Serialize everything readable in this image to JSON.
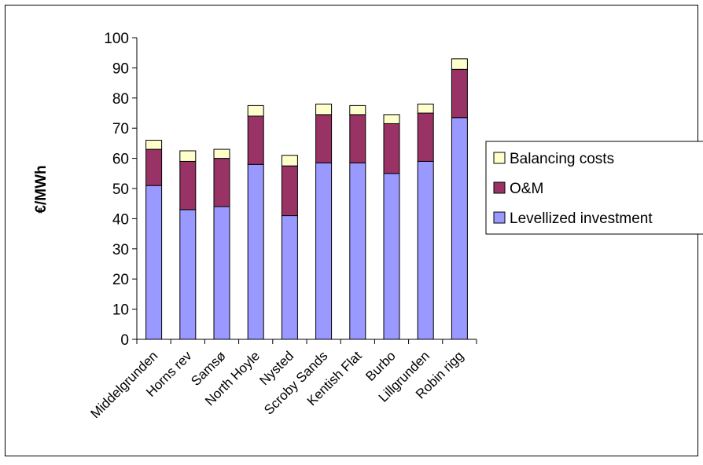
{
  "chart_data": {
    "type": "bar",
    "stacked": true,
    "title": "",
    "xlabel": "",
    "ylabel": "€/MWh",
    "ylim": [
      0,
      100
    ],
    "yticks": [
      0,
      10,
      20,
      30,
      40,
      50,
      60,
      70,
      80,
      90,
      100
    ],
    "grid": false,
    "legend_position": "right",
    "categories": [
      "Middelgrunden",
      "Horns rev",
      "Samsø",
      "North Hoyle",
      "Nysted",
      "Scroby Sands",
      "Kentish Flat",
      "Burbo",
      "Lillgrunden",
      "Robin rigg"
    ],
    "series": [
      {
        "name": "Levellized investment",
        "color": "#9999ff",
        "values": [
          51,
          43,
          44,
          58,
          41,
          58.5,
          58.5,
          55,
          59,
          73.5
        ]
      },
      {
        "name": "O&M",
        "color": "#993366",
        "values": [
          12,
          16,
          16,
          16,
          16.5,
          16,
          16,
          16.5,
          16,
          16
        ]
      },
      {
        "name": "Balancing costs",
        "color": "#ffffcc",
        "values": [
          3,
          3.5,
          3,
          3.5,
          3.5,
          3.5,
          3,
          3,
          3,
          3.5
        ]
      }
    ]
  }
}
